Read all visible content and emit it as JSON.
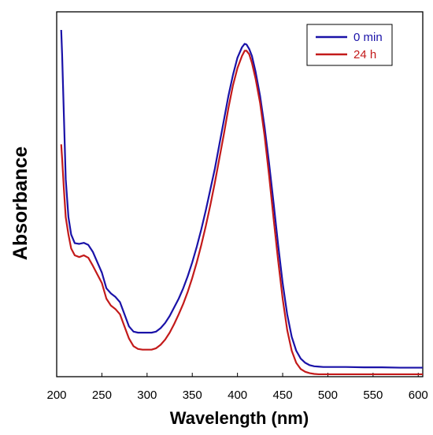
{
  "chart_data": {
    "type": "line",
    "title": "",
    "xlabel": "Wavelength (nm)",
    "ylabel": "Absorbance",
    "xlim": [
      200,
      605
    ],
    "ylim": [
      0,
      1.0
    ],
    "x_ticks": [
      200,
      250,
      300,
      350,
      400,
      450,
      500,
      550,
      600
    ],
    "y_ticks_shown": false,
    "grid": false,
    "legend": {
      "position": "top-right"
    },
    "series": [
      {
        "name": "0 min",
        "color": "#1a12a8",
        "x": [
          205,
          206,
          208,
          210,
          213,
          216,
          220,
          225,
          230,
          235,
          240,
          245,
          250,
          255,
          260,
          265,
          270,
          275,
          280,
          285,
          290,
          295,
          300,
          305,
          310,
          315,
          320,
          325,
          330,
          335,
          340,
          345,
          350,
          355,
          360,
          365,
          370,
          375,
          380,
          385,
          390,
          395,
          400,
          405,
          408,
          410,
          413,
          416,
          420,
          425,
          430,
          435,
          440,
          445,
          450,
          455,
          460,
          465,
          470,
          475,
          480,
          485,
          490,
          495,
          500,
          520,
          540,
          560,
          580,
          605
        ],
        "y": [
          1.0,
          0.93,
          0.75,
          0.57,
          0.46,
          0.41,
          0.385,
          0.383,
          0.386,
          0.38,
          0.36,
          0.33,
          0.3,
          0.255,
          0.24,
          0.23,
          0.215,
          0.18,
          0.145,
          0.13,
          0.127,
          0.127,
          0.127,
          0.127,
          0.13,
          0.14,
          0.155,
          0.175,
          0.2,
          0.225,
          0.255,
          0.29,
          0.33,
          0.375,
          0.425,
          0.48,
          0.54,
          0.6,
          0.67,
          0.74,
          0.81,
          0.87,
          0.92,
          0.95,
          0.96,
          0.958,
          0.945,
          0.925,
          0.88,
          0.81,
          0.72,
          0.615,
          0.5,
          0.38,
          0.27,
          0.18,
          0.115,
          0.075,
          0.052,
          0.04,
          0.033,
          0.03,
          0.029,
          0.028,
          0.028,
          0.028,
          0.027,
          0.027,
          0.026,
          0.026
        ]
      },
      {
        "name": "24 h",
        "color": "#c31a1a",
        "x": [
          205,
          206,
          208,
          210,
          213,
          216,
          220,
          225,
          230,
          235,
          240,
          245,
          250,
          255,
          260,
          265,
          270,
          275,
          280,
          285,
          290,
          295,
          300,
          305,
          310,
          315,
          320,
          325,
          330,
          335,
          340,
          345,
          350,
          355,
          360,
          365,
          370,
          375,
          380,
          385,
          390,
          395,
          400,
          405,
          408,
          410,
          413,
          416,
          420,
          425,
          430,
          435,
          440,
          445,
          450,
          455,
          460,
          465,
          470,
          475,
          480,
          485,
          490,
          495,
          500,
          520,
          540,
          560,
          580,
          605
        ],
        "y": [
          0.67,
          0.63,
          0.54,
          0.46,
          0.41,
          0.37,
          0.35,
          0.345,
          0.35,
          0.343,
          0.32,
          0.295,
          0.27,
          0.225,
          0.205,
          0.195,
          0.18,
          0.145,
          0.11,
          0.088,
          0.08,
          0.078,
          0.078,
          0.078,
          0.082,
          0.092,
          0.107,
          0.127,
          0.152,
          0.18,
          0.21,
          0.245,
          0.285,
          0.33,
          0.38,
          0.435,
          0.495,
          0.56,
          0.63,
          0.7,
          0.775,
          0.84,
          0.89,
          0.925,
          0.94,
          0.94,
          0.93,
          0.905,
          0.86,
          0.79,
          0.695,
          0.58,
          0.455,
          0.335,
          0.225,
          0.135,
          0.075,
          0.04,
          0.022,
          0.014,
          0.01,
          0.008,
          0.007,
          0.007,
          0.007,
          0.007,
          0.007,
          0.007,
          0.007,
          0.007
        ]
      }
    ]
  }
}
